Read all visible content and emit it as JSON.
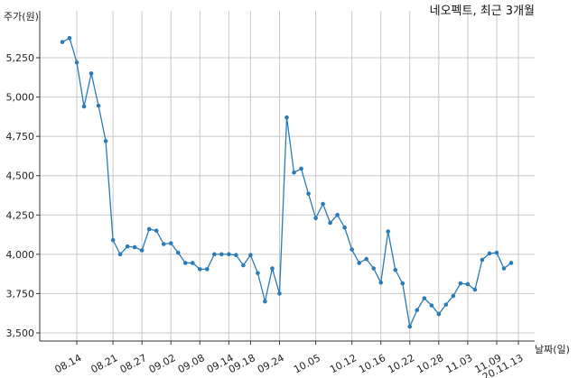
{
  "chart_data": {
    "type": "line",
    "title": "네오펙트, 최근 3개월",
    "ylabel": "주가(원)",
    "xlabel": "날짜(일)",
    "ylim": [
      3500,
      5400
    ],
    "yticks": [
      3500,
      3750,
      4000,
      4250,
      4500,
      4750,
      5000,
      5250
    ],
    "ytick_labels": [
      "3,500",
      "3,750",
      "4,000",
      "4,250",
      "4,500",
      "4,750",
      "5,000",
      "5,250"
    ],
    "xtick_labels": [
      "08.14",
      "08.21",
      "08.27",
      "09.02",
      "09.08",
      "09.14",
      "09.18",
      "09.24",
      "10.05",
      "10.12",
      "10.16",
      "10.22",
      "10.28",
      "11.03",
      "11.09",
      "20.11.13"
    ],
    "xtick_index": [
      2,
      7,
      11,
      15,
      19,
      23,
      26,
      30,
      35,
      40,
      44,
      48,
      52,
      56,
      60,
      63
    ],
    "grid": true,
    "series": [
      {
        "values": [
          5350,
          5375,
          5220,
          4940,
          5150,
          4945,
          4720,
          4090,
          4000,
          4050,
          4045,
          4025,
          4160,
          4150,
          4065,
          4070,
          4010,
          3945,
          3945,
          3905,
          3905,
          4000,
          4000,
          4000,
          3995,
          3930,
          3995,
          3880,
          3700,
          3910,
          3750,
          4870,
          4520,
          4545,
          4385,
          4230,
          4320,
          4200,
          4250,
          4170,
          4030,
          3945,
          3970,
          3910,
          3820,
          4145,
          3900,
          3815,
          3540,
          3645,
          3720,
          3675,
          3620,
          3680,
          3735,
          3815,
          3810,
          3775,
          3965,
          4005,
          4010,
          3910,
          3945
        ]
      }
    ]
  }
}
